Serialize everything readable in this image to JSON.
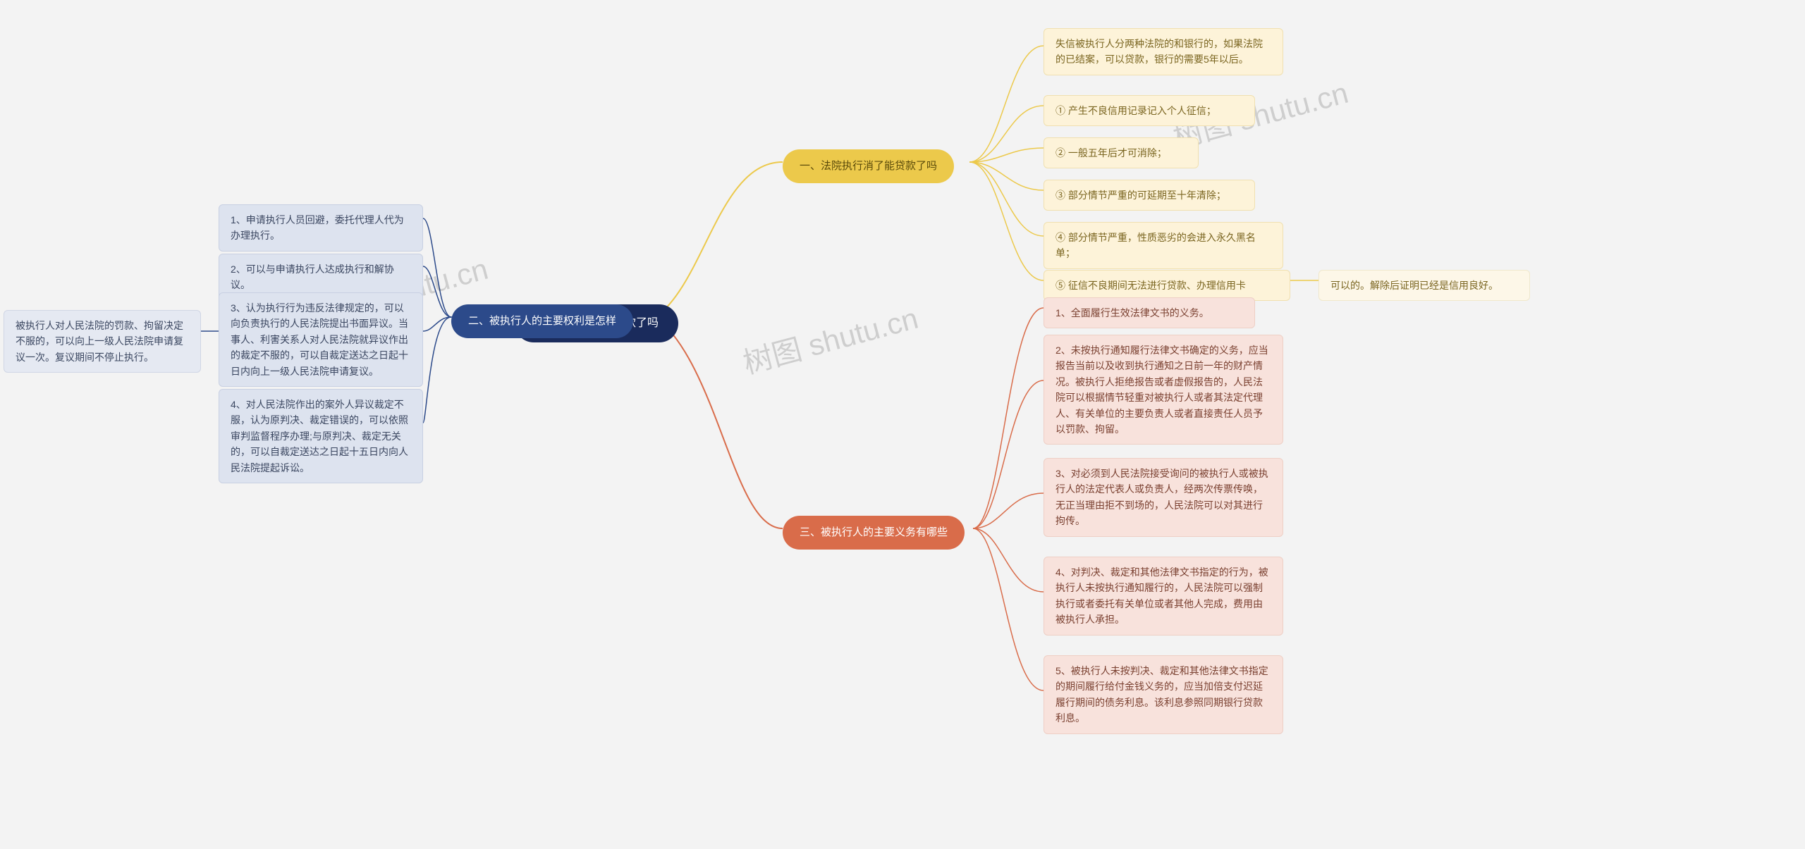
{
  "center": {
    "label": "法院执行消了能贷款了吗"
  },
  "branch1": {
    "label": "一、法院执行消了能贷款了吗",
    "items": [
      "失信被执行人分两种法院的和银行的，如果法院的已结案，可以贷款，银行的需要5年以后。",
      "① 产生不良信用记录记入个人征信；",
      "② 一般五年后才可消除；",
      "③ 部分情节严重的可延期至十年清除；",
      "④ 部分情节严重，性质恶劣的会进入永久黑名单；",
      "⑤ 征信不良期间无法进行贷款、办理信用卡"
    ],
    "sub5": "可以的。解除后证明已经是信用良好。"
  },
  "branch2": {
    "label": "二、被执行人的主要权利是怎样",
    "items": [
      "1、申请执行人员回避，委托代理人代为办理执行。",
      "2、可以与申请执行人达成执行和解协议。",
      "3、认为执行行为违反法律规定的，可以向负责执行的人民法院提出书面异议。当事人、利害关系人对人民法院就异议作出的裁定不服的，可以自裁定送达之日起十日内向上一级人民法院申请复议。",
      "4、对人民法院作出的案外人异议裁定不服，认为原判决、裁定错误的，可以依照审判监督程序办理;与原判决、裁定无关的，可以自裁定送达之日起十五日内向人民法院提起诉讼。"
    ],
    "sub3": "被执行人对人民法院的罚款、拘留决定不服的，可以向上一级人民法院申请复议一次。复议期间不停止执行。"
  },
  "branch3": {
    "label": "三、被执行人的主要义务有哪些",
    "items": [
      "1、全面履行生效法律文书的义务。",
      "2、未按执行通知履行法律文书确定的义务，应当报告当前以及收到执行通知之日前一年的财产情况。被执行人拒绝报告或者虚假报告的，人民法院可以根据情节轻重对被执行人或者其法定代理人、有关单位的主要负责人或者直接责任人员予以罚款、拘留。",
      "3、对必须到人民法院接受询问的被执行人或被执行人的法定代表人或负责人，经两次传票传唤，无正当理由拒不到场的，人民法院可以对其进行拘传。",
      "4、对判决、裁定和其他法律文书指定的行为，被执行人未按执行通知履行的，人民法院可以强制执行或者委托有关单位或者其他人完成，费用由被执行人承担。",
      "5、被执行人未按判决、裁定和其他法律文书指定的期间履行给付金钱义务的，应当加倍支付迟延履行期间的债务利息。该利息参照同期银行贷款利息。"
    ]
  },
  "watermarks": [
    "树图 shutu.cn",
    "树图 shutu.cn",
    "树图 shutu.cn"
  ],
  "colors": {
    "bg": "#f3f3f3",
    "center": "#1a2b5c",
    "b1": "#ecc94b",
    "b2": "#2c4a8a",
    "b3": "#d96c4a",
    "l1": "#fdf3d9",
    "l2": "#dde3ef",
    "l3": "#f8e2dc"
  }
}
